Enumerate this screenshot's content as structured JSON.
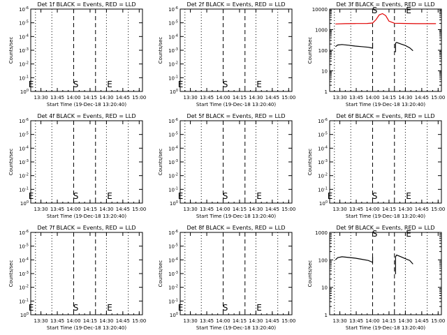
{
  "window": {
    "title": ""
  },
  "colors": {
    "events": "#000000",
    "lld": "#e00000",
    "axis": "#000000",
    "background": "#ffffff"
  },
  "chart_data": [
    {
      "type": "line",
      "title": "Det 1f BLACK = Events, RED = LLD",
      "xlabel": "Start Time (19-Dec-18 13:20:40)",
      "ylabel": "Counts/sec",
      "x_ticks": [
        "13:30",
        "13:45",
        "14:00",
        "14:15",
        "14:30",
        "14:45",
        "15:00"
      ],
      "y_ticks": [
        "10^0",
        "10^-1",
        "10^-2",
        "10^-3",
        "10^-4",
        "10^-5",
        "10^-6"
      ],
      "y_scale": "log",
      "markers": [
        "E",
        "S",
        "E"
      ],
      "series": []
    },
    {
      "type": "line",
      "title": "Det 2f BLACK = Events, RED = LLD",
      "xlabel": "Start Time (19-Dec-18 13:20:40)",
      "ylabel": "Counts/sec",
      "x_ticks": [
        "13:30",
        "13:45",
        "14:00",
        "14:15",
        "14:30",
        "14:45",
        "15:00"
      ],
      "y_ticks": [
        "10^0",
        "10^-1",
        "10^-2",
        "10^-3",
        "10^-4",
        "10^-5",
        "10^-6"
      ],
      "y_scale": "log",
      "markers": [
        "E",
        "S",
        "E"
      ],
      "series": []
    },
    {
      "type": "line",
      "title": "Det 3f BLACK = Events, RED = LLD",
      "xlabel": "Start Time (19-Dec-18 13:20:40)",
      "ylabel": "Counts/sec",
      "x_ticks": [
        "13:30",
        "13:45",
        "14:00",
        "14:15",
        "14:30",
        "14:45",
        "15:00"
      ],
      "y_ticks": [
        "1",
        "10",
        "100",
        "1000",
        "10000"
      ],
      "y_scale": "log",
      "ylim": [
        1,
        10000
      ],
      "markers": [
        "S",
        "E"
      ],
      "series": [
        {
          "color": "#e00000",
          "segments": [
            {
              "x": [
                "13:26",
                "13:35",
                "13:45",
                "13:55",
                "14:00",
                "14:03",
                "14:06",
                "14:09",
                "14:12",
                "14:15",
                "14:20",
                "14:30",
                "14:40",
                "14:50",
                "14:58"
              ],
              "y": [
                1900,
                1950,
                1980,
                2000,
                2100,
                3000,
                5200,
                6000,
                4800,
                2600,
                2050,
                2000,
                1950,
                1950,
                1950
              ]
            }
          ]
        },
        {
          "color": "#000000",
          "segments": [
            {
              "x": [
                "13:26",
                "13:28",
                "13:32",
                "13:38",
                "13:44",
                "13:50",
                "13:56",
                "13:59",
                "14:00",
                "14:00"
              ],
              "y": [
                150,
                180,
                190,
                175,
                160,
                150,
                140,
                130,
                125,
                230
              ]
            },
            {
              "x": [
                "14:21",
                "14:21",
                "14:22",
                "14:26",
                "14:30",
                "14:34",
                "14:37"
              ],
              "y": [
                80,
                220,
                240,
                200,
                170,
                130,
                95
              ]
            }
          ]
        }
      ]
    },
    {
      "type": "line",
      "title": "Det 4f BLACK = Events, RED = LLD",
      "xlabel": "Start Time (19-Dec-18 13:20:40)",
      "ylabel": "Counts/sec",
      "x_ticks": [
        "13:30",
        "13:45",
        "14:00",
        "14:15",
        "14:30",
        "14:45",
        "15:00"
      ],
      "y_ticks": [
        "10^0",
        "10^-1",
        "10^-2",
        "10^-3",
        "10^-4",
        "10^-5",
        "10^-6"
      ],
      "y_scale": "log",
      "markers": [
        "E",
        "S",
        "E"
      ],
      "series": []
    },
    {
      "type": "line",
      "title": "Det 5f BLACK = Events, RED = LLD",
      "xlabel": "Start Time (19-Dec-18 13:20:40)",
      "ylabel": "Counts/sec",
      "x_ticks": [
        "13:30",
        "13:45",
        "14:00",
        "14:15",
        "14:30",
        "14:45",
        "15:00"
      ],
      "y_ticks": [
        "10^0",
        "10^-1",
        "10^-2",
        "10^-3",
        "10^-4",
        "10^-5",
        "10^-6"
      ],
      "y_scale": "log",
      "markers": [
        "E",
        "S",
        "E"
      ],
      "series": []
    },
    {
      "type": "line",
      "title": "Det 6f BLACK = Events, RED = LLD",
      "xlabel": "Start Time (19-Dec-18 13:20:40)",
      "ylabel": "Counts/sec",
      "x_ticks": [
        "13:30",
        "13:45",
        "14:00",
        "14:15",
        "14:30",
        "14:45",
        "15:00"
      ],
      "y_ticks": [
        "10^0",
        "10^-1",
        "10^-2",
        "10^-3",
        "10^-4",
        "10^-5",
        "10^-6"
      ],
      "y_scale": "log",
      "markers": [
        "E",
        "S",
        "E"
      ],
      "series": []
    },
    {
      "type": "line",
      "title": "Det 7f BLACK = Events, RED = LLD",
      "xlabel": "Start Time (19-Dec-18 13:20:40)",
      "ylabel": "Counts/sec",
      "x_ticks": [
        "13:30",
        "13:45",
        "14:00",
        "14:15",
        "14:30",
        "14:45",
        "15:00"
      ],
      "y_ticks": [
        "10^0",
        "10^-1",
        "10^-2",
        "10^-3",
        "10^-4",
        "10^-5",
        "10^-6"
      ],
      "y_scale": "log",
      "markers": [
        "E",
        "S",
        "E"
      ],
      "series": []
    },
    {
      "type": "line",
      "title": "Det 8f BLACK = Events, RED = LLD",
      "xlabel": "Start Time (19-Dec-18 13:20:40)",
      "ylabel": "Counts/sec",
      "x_ticks": [
        "13:30",
        "13:45",
        "14:00",
        "14:15",
        "14:30",
        "14:45",
        "15:00"
      ],
      "y_ticks": [
        "10^0",
        "10^-1",
        "10^-2",
        "10^-3",
        "10^-4",
        "10^-5",
        "10^-6"
      ],
      "y_scale": "log",
      "markers": [
        "E",
        "S",
        "E"
      ],
      "series": []
    },
    {
      "type": "line",
      "title": "Det 9f BLACK = Events, RED = LLD",
      "xlabel": "Start Time (19-Dec-18 13:20:40)",
      "ylabel": "Counts/sec",
      "x_ticks": [
        "13:30",
        "13:45",
        "14:00",
        "14:15",
        "14:30",
        "14:45",
        "15:00"
      ],
      "y_ticks": [
        "1",
        "10",
        "100",
        "1000"
      ],
      "y_scale": "log",
      "ylim": [
        1,
        1000
      ],
      "markers": [
        "S",
        "E"
      ],
      "series": [
        {
          "color": "#000000",
          "segments": [
            {
              "x": [
                "13:26",
                "13:28",
                "13:32",
                "13:38",
                "13:44",
                "13:50",
                "13:56",
                "13:59",
                "14:00",
                "14:00"
              ],
              "y": [
                100,
                120,
                130,
                122,
                115,
                105,
                95,
                85,
                80,
                130
              ]
            },
            {
              "x": [
                "14:21",
                "14:21",
                "14:22",
                "14:26",
                "14:30",
                "14:34",
                "14:37"
              ],
              "y": [
                30,
                130,
                150,
                130,
                110,
                95,
                70
              ]
            }
          ]
        }
      ]
    }
  ]
}
